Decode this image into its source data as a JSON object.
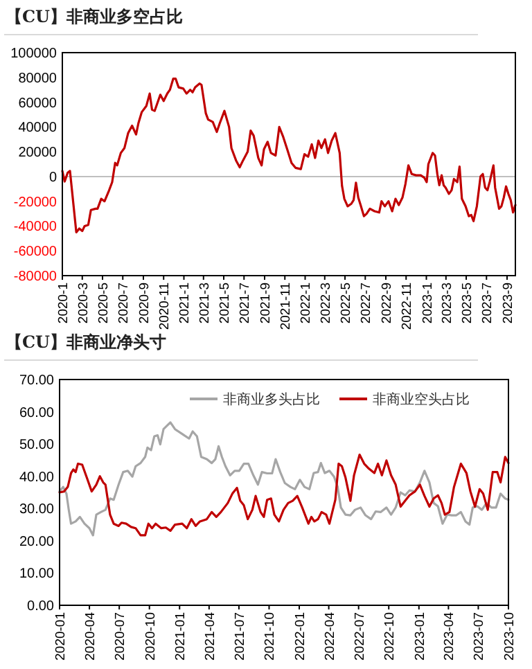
{
  "chart_data": [
    {
      "type": "line",
      "title": "【CU】非商业多空占比",
      "color": "#c00000",
      "x": [
        "2020-01-01",
        "2020-01-08",
        "2020-01-17",
        "2020-01-24",
        "2020-02-12",
        "2020-02-21",
        "2020-03-01",
        "2020-03-08",
        "2020-03-19",
        "2020-03-27",
        "2020-04-10",
        "2020-04-16",
        "2020-04-27",
        "2020-05-07",
        "2020-05-21",
        "2020-05-30",
        "2020-06-08",
        "2020-06-14",
        "2020-06-25",
        "2020-07-06",
        "2020-07-17",
        "2020-07-29",
        "2020-08-10",
        "2020-08-17",
        "2020-08-27",
        "2020-09-10",
        "2020-09-20",
        "2020-09-27",
        "2020-10-05",
        "2020-10-22",
        "2020-11-01",
        "2020-11-12",
        "2020-11-20",
        "2020-11-30",
        "2020-12-07",
        "2020-12-16",
        "2020-12-30",
        "2021-01-09",
        "2021-01-20",
        "2021-01-27",
        "2021-02-04",
        "2021-02-17",
        "2021-02-23",
        "2021-03-08",
        "2021-03-15",
        "2021-03-29",
        "2021-04-10",
        "2021-04-19",
        "2021-05-03",
        "2021-05-17",
        "2021-05-24",
        "2021-06-07",
        "2021-06-18",
        "2021-06-28",
        "2021-07-12",
        "2021-07-21",
        "2021-07-30",
        "2021-08-13",
        "2021-08-23",
        "2021-08-30",
        "2021-09-10",
        "2021-09-20",
        "2021-10-04",
        "2021-10-15",
        "2021-10-27",
        "2021-11-08",
        "2021-11-21",
        "2021-12-03",
        "2021-12-19",
        "2021-12-30",
        "2022-01-10",
        "2022-01-21",
        "2022-01-31",
        "2022-02-10",
        "2022-02-19",
        "2022-03-02",
        "2022-03-11",
        "2022-03-22",
        "2022-04-02",
        "2022-04-15",
        "2022-04-22",
        "2022-04-29",
        "2022-05-09",
        "2022-05-20",
        "2022-05-27",
        "2022-06-03",
        "2022-06-10",
        "2022-06-17",
        "2022-06-27",
        "2022-07-05",
        "2022-07-15",
        "2022-07-29",
        "2022-08-12",
        "2022-08-19",
        "2022-08-29",
        "2022-09-09",
        "2022-09-20",
        "2022-09-30",
        "2022-10-10",
        "2022-10-21",
        "2022-10-30",
        "2022-11-08",
        "2022-11-18",
        "2022-12-01",
        "2022-12-15",
        "2022-12-26",
        "2023-01-02",
        "2023-01-07",
        "2023-01-20",
        "2023-01-27",
        "2023-02-03",
        "2023-02-09",
        "2023-02-16",
        "2023-02-22",
        "2023-02-28",
        "2023-03-10",
        "2023-03-18",
        "2023-03-25",
        "2023-04-04",
        "2023-04-11",
        "2023-04-18",
        "2023-04-29",
        "2023-05-09",
        "2023-05-16",
        "2023-05-23",
        "2023-06-02",
        "2023-06-13",
        "2023-06-20",
        "2023-06-27",
        "2023-07-04",
        "2023-07-11",
        "2023-07-22",
        "2023-07-27",
        "2023-08-08",
        "2023-08-15",
        "2023-08-22",
        "2023-08-29",
        "2023-09-05",
        "2023-09-12",
        "2023-09-19",
        "2023-09-26"
      ],
      "values": [
        4500,
        -4000,
        3000,
        4500,
        -45000,
        -42000,
        -44000,
        -40000,
        -39000,
        -27000,
        -26000,
        -26000,
        -18000,
        -20000,
        -11000,
        -4500,
        11000,
        9000,
        19000,
        23000,
        35000,
        41000,
        34000,
        43000,
        52000,
        57000,
        67000,
        54000,
        53000,
        66000,
        61000,
        67000,
        70000,
        79000,
        79000,
        72000,
        71000,
        67000,
        70000,
        68000,
        72000,
        75000,
        74000,
        51000,
        46000,
        44000,
        36000,
        43000,
        53000,
        40000,
        23000,
        13000,
        7500,
        13000,
        20000,
        37000,
        33000,
        15000,
        9000,
        22000,
        28000,
        19000,
        17000,
        40000,
        32000,
        22000,
        11000,
        7000,
        6000,
        18000,
        16000,
        26000,
        15000,
        29000,
        23000,
        30000,
        19000,
        29000,
        35000,
        19000,
        -7500,
        -18000,
        -24000,
        -22000,
        -19000,
        -5000,
        -17000,
        -23000,
        -32000,
        -30000,
        -26000,
        -28000,
        -29000,
        -20000,
        -24000,
        -20000,
        -28000,
        -18000,
        -23000,
        -17000,
        -6000,
        9000,
        2000,
        1000,
        1000,
        -1000,
        -4500,
        10000,
        19000,
        17000,
        2000,
        -7000,
        1000,
        -7000,
        -9000,
        -14000,
        -11000,
        -2000,
        -4500,
        8000,
        -18000,
        -24000,
        -32000,
        -31000,
        -36000,
        -24000,
        0,
        2000,
        -9000,
        -11000,
        -4000,
        9000,
        -9000,
        -26000,
        -24000,
        -17000,
        -8000,
        -14000,
        -19000,
        -29000,
        -23000
      ],
      "xlim": [
        "2020-01-01",
        "2023-09-26"
      ],
      "xticks": [
        {
          "value": "2020-01",
          "label": "2020-1"
        },
        {
          "value": "2020-03",
          "label": "2020-3"
        },
        {
          "value": "2020-05",
          "label": "2020-5"
        },
        {
          "value": "2020-07",
          "label": "2020-7"
        },
        {
          "value": "2020-09",
          "label": "2020-9"
        },
        {
          "value": "2020-11",
          "label": "2020-11"
        },
        {
          "value": "2021-01",
          "label": "2021-1"
        },
        {
          "value": "2021-03",
          "label": "2021-3"
        },
        {
          "value": "2021-05",
          "label": "2021-5"
        },
        {
          "value": "2021-07",
          "label": "2021-7"
        },
        {
          "value": "2021-09",
          "label": "2021-9"
        },
        {
          "value": "2021-11",
          "label": "2021-11"
        },
        {
          "value": "2022-01",
          "label": "2022-1"
        },
        {
          "value": "2022-03",
          "label": "2022-3"
        },
        {
          "value": "2022-05",
          "label": "2022-5"
        },
        {
          "value": "2022-07",
          "label": "2022-7"
        },
        {
          "value": "2022-09",
          "label": "2022-9"
        },
        {
          "value": "2022-11",
          "label": "2022-11"
        },
        {
          "value": "2023-01",
          "label": "2023-1"
        },
        {
          "value": "2023-03",
          "label": "2023-3"
        },
        {
          "value": "2023-05",
          "label": "2023-5"
        },
        {
          "value": "2023-07",
          "label": "2023-7"
        },
        {
          "value": "2023-09",
          "label": "2023-9"
        }
      ],
      "ylim": [
        -80000,
        100000
      ],
      "yticks": [
        -80000,
        -60000,
        -40000,
        -20000,
        0,
        20000,
        40000,
        60000,
        80000,
        100000
      ],
      "ref_lines": [
        {
          "axis": "y",
          "value": 0,
          "color": "#bfbfbf"
        }
      ]
    },
    {
      "type": "line",
      "title": "【CU】非商业净头寸",
      "legend": "top right",
      "series": [
        {
          "name": "非商业多头占比",
          "color": "#a6a6a6",
          "x": [
            "2020-01-01",
            "2020-01-12",
            "2020-01-22",
            "2020-01-29",
            "2020-02-05",
            "2020-02-19",
            "2020-03-03",
            "2020-03-17",
            "2020-04-01",
            "2020-04-12",
            "2020-04-22",
            "2020-05-06",
            "2020-05-20",
            "2020-06-03",
            "2020-06-14",
            "2020-06-29",
            "2020-07-13",
            "2020-07-27",
            "2020-08-10",
            "2020-08-20",
            "2020-09-04",
            "2020-09-18",
            "2020-09-25",
            "2020-10-06",
            "2020-10-16",
            "2020-10-26",
            "2020-11-03",
            "2020-11-13",
            "2020-12-04",
            "2020-12-18",
            "2021-01-09",
            "2021-01-30",
            "2021-02-10",
            "2021-02-23",
            "2021-03-08",
            "2021-03-25",
            "2021-04-09",
            "2021-04-20",
            "2021-04-30",
            "2021-05-10",
            "2021-05-21",
            "2021-06-04",
            "2021-06-18",
            "2021-07-02",
            "2021-07-16",
            "2021-07-30",
            "2021-08-14",
            "2021-08-28",
            "2021-09-09",
            "2021-09-25",
            "2021-10-10",
            "2021-10-21",
            "2021-11-04",
            "2021-11-18",
            "2021-12-05",
            "2021-12-19",
            "2022-01-03",
            "2022-01-17",
            "2022-02-01",
            "2022-02-14",
            "2022-02-27",
            "2022-03-08",
            "2022-03-20",
            "2022-04-03",
            "2022-04-17",
            "2022-04-28",
            "2022-05-08",
            "2022-05-22",
            "2022-06-06",
            "2022-06-20",
            "2022-07-07",
            "2022-07-22",
            "2022-08-08",
            "2022-08-22",
            "2022-09-06",
            "2022-09-24",
            "2022-10-08",
            "2022-10-22",
            "2022-11-06",
            "2022-11-20",
            "2022-12-03",
            "2022-12-20",
            "2023-01-04",
            "2023-01-18",
            "2023-02-02",
            "2023-02-15",
            "2023-02-28",
            "2023-03-14",
            "2023-03-28",
            "2023-04-11",
            "2023-04-25",
            "2023-05-09",
            "2023-05-23",
            "2023-06-04",
            "2023-06-14",
            "2023-06-28",
            "2023-07-12",
            "2023-07-26",
            "2023-08-10",
            "2023-08-24",
            "2023-09-07",
            "2023-09-21",
            "2023-10-01"
          ],
          "values": [
            35.3,
            36.7,
            34.6,
            29.6,
            25.3,
            26,
            27.4,
            25.3,
            23.9,
            21.7,
            28.1,
            28.9,
            29.6,
            33.1,
            32.7,
            37.4,
            41.3,
            41.7,
            39.9,
            43.1,
            44.1,
            46,
            48.9,
            48.1,
            52.4,
            52.7,
            49.9,
            54.6,
            56.7,
            54.6,
            53.1,
            51.7,
            53.9,
            52.4,
            46,
            45.3,
            44.1,
            45.3,
            49.3,
            46,
            43.1,
            40.3,
            41.7,
            41.7,
            43.9,
            43.9,
            40.3,
            37.4,
            41.3,
            40.9,
            40.9,
            45.3,
            41.3,
            37.9,
            36.7,
            36,
            38.9,
            36.7,
            36,
            41,
            41.3,
            44.1,
            41,
            41.7,
            39.9,
            36.7,
            30.3,
            28.1,
            27.9,
            29.6,
            30.3,
            27.9,
            26.7,
            29.1,
            28.9,
            30.3,
            28.1,
            30.3,
            35,
            34.1,
            35.6,
            35.3,
            38.1,
            41.7,
            38.1,
            31.7,
            30.7,
            25.3,
            28.1,
            27.9,
            27.9,
            28.9,
            26,
            25,
            30.3,
            30.7,
            29.6,
            31.7,
            30.3,
            30.3,
            34.6,
            33.1,
            32.7
          ]
        },
        {
          "name": "非商业空头占比",
          "color": "#c00000",
          "x": [
            "2020-01-01",
            "2020-01-15",
            "2020-01-26",
            "2020-02-05",
            "2020-02-12",
            "2020-02-19",
            "2020-02-26",
            "2020-03-10",
            "2020-03-24",
            "2020-04-08",
            "2020-04-22",
            "2020-05-03",
            "2020-05-13",
            "2020-05-20",
            "2020-06-03",
            "2020-06-14",
            "2020-06-29",
            "2020-07-08",
            "2020-07-22",
            "2020-08-06",
            "2020-08-20",
            "2020-09-04",
            "2020-09-18",
            "2020-09-28",
            "2020-10-09",
            "2020-10-20",
            "2020-11-06",
            "2020-11-20",
            "2020-12-04",
            "2020-12-18",
            "2021-01-09",
            "2021-01-23",
            "2021-02-06",
            "2021-02-19",
            "2021-03-04",
            "2021-03-25",
            "2021-04-09",
            "2021-04-23",
            "2021-05-07",
            "2021-05-28",
            "2021-06-11",
            "2021-06-25",
            "2021-07-05",
            "2021-07-16",
            "2021-07-28",
            "2021-08-11",
            "2021-08-21",
            "2021-09-05",
            "2021-09-15",
            "2021-09-25",
            "2021-10-07",
            "2021-10-17",
            "2021-10-31",
            "2021-11-14",
            "2021-11-28",
            "2021-12-12",
            "2021-12-26",
            "2022-01-10",
            "2022-01-29",
            "2022-02-07",
            "2022-02-16",
            "2022-02-27",
            "2022-03-10",
            "2022-03-24",
            "2022-04-03",
            "2022-04-21",
            "2022-05-01",
            "2022-05-11",
            "2022-05-22",
            "2022-06-06",
            "2022-06-17",
            "2022-07-04",
            "2022-07-18",
            "2022-08-01",
            "2022-08-18",
            "2022-08-29",
            "2022-09-10",
            "2022-09-24",
            "2022-10-08",
            "2022-10-22",
            "2022-11-06",
            "2022-11-20",
            "2022-12-03",
            "2022-12-20",
            "2023-01-04",
            "2023-01-18",
            "2023-02-02",
            "2023-02-15",
            "2023-02-28",
            "2023-03-11",
            "2023-03-21",
            "2023-04-04",
            "2023-04-18",
            "2023-05-09",
            "2023-05-26",
            "2023-06-07",
            "2023-06-21",
            "2023-07-05",
            "2023-07-16",
            "2023-07-30",
            "2023-08-14",
            "2023-08-28",
            "2023-09-07",
            "2023-09-21",
            "2023-10-01"
          ],
          "values": [
            35,
            35.3,
            36.7,
            41,
            42.1,
            41.3,
            43.9,
            43.6,
            39.6,
            35.3,
            37.4,
            40,
            38.1,
            37.4,
            28.1,
            25.3,
            24.6,
            25.6,
            25.3,
            24.3,
            23.9,
            21.7,
            21.7,
            25.3,
            23.9,
            25.3,
            23.9,
            24.1,
            23.1,
            25,
            25.3,
            23.9,
            26.7,
            24.6,
            26,
            26.7,
            28.9,
            27.4,
            28.9,
            31.7,
            34.6,
            36.4,
            32.4,
            31,
            26.7,
            29.6,
            33.9,
            28.9,
            27.4,
            32.7,
            33.1,
            28.1,
            26,
            29.6,
            31.7,
            32.4,
            33.9,
            30.3,
            25.3,
            27.4,
            26,
            26.7,
            28.9,
            28.1,
            25.3,
            32.7,
            43.9,
            43.1,
            39.6,
            32.4,
            40.3,
            46.7,
            43.9,
            42.4,
            41,
            43.9,
            40.3,
            44.9,
            40.3,
            37.4,
            30.6,
            32.4,
            34.1,
            35.3,
            37.4,
            33.9,
            30.6,
            33.1,
            34.1,
            31.7,
            28.1,
            28.9,
            36.7,
            43.9,
            41,
            35.3,
            30.6,
            36,
            34.6,
            29.6,
            41.3,
            41.3,
            38.1,
            46,
            44.1
          ]
        }
      ],
      "xlim": [
        "2020-01-01",
        "2023-10-01"
      ],
      "xticks": [
        "2020-01",
        "2020-04",
        "2020-07",
        "2020-10",
        "2021-01",
        "2021-04",
        "2021-07",
        "2021-10",
        "2022-01",
        "2022-04",
        "2022-07",
        "2022-10",
        "2023-01",
        "2023-04",
        "2023-07",
        "2023-10"
      ],
      "ylim": [
        0,
        70
      ],
      "yticks": [
        {
          "value": 0,
          "label": "0.00"
        },
        {
          "value": 10,
          "label": "10.00"
        },
        {
          "value": 20,
          "label": "20.00"
        },
        {
          "value": 30,
          "label": "30.00"
        },
        {
          "value": 40,
          "label": "40.00"
        },
        {
          "value": 50,
          "label": "50.00"
        },
        {
          "value": 60,
          "label": "60.00"
        },
        {
          "value": 70,
          "label": "70.00"
        }
      ]
    }
  ]
}
